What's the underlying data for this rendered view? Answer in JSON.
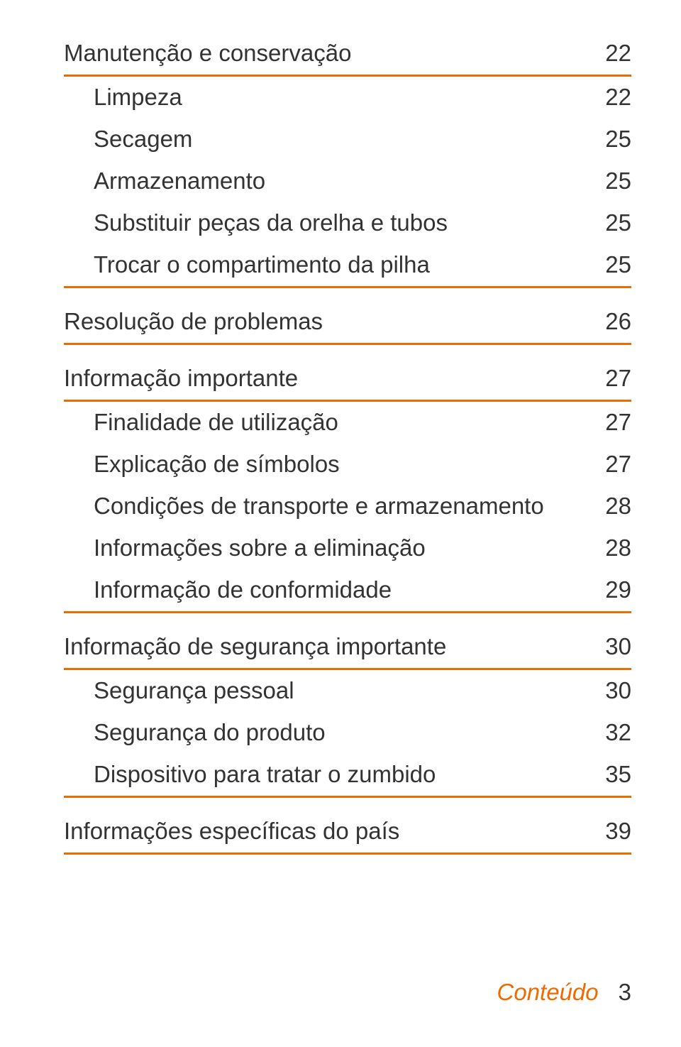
{
  "colors": {
    "rule": "#ed6b00",
    "text": "#333333",
    "footer_label": "#ed6b00",
    "background": "#ffffff"
  },
  "typography": {
    "body_fontsize_pt": 25,
    "footer_fontsize_pt": 25,
    "section_weight": 400,
    "sub_weight": 300
  },
  "sections": [
    {
      "title": "Manutenção e conservação",
      "page": "22",
      "items": [
        {
          "label": "Limpeza",
          "page": "22"
        },
        {
          "label": "Secagem",
          "page": "25"
        },
        {
          "label": "Armazenamento",
          "page": "25"
        },
        {
          "label": "Substituir peças da orelha e tubos",
          "page": "25"
        },
        {
          "label": "Trocar o compartimento da pilha",
          "page": "25"
        }
      ]
    },
    {
      "title": "Resolução de problemas",
      "page": "26",
      "items": []
    },
    {
      "title": "Informação importante",
      "page": "27",
      "items": [
        {
          "label": "Finalidade de utilização",
          "page": "27"
        },
        {
          "label": "Explicação de símbolos",
          "page": "27"
        },
        {
          "label": "Condições de transporte e armazenamento",
          "page": "28"
        },
        {
          "label": "Informações sobre a eliminação",
          "page": "28"
        },
        {
          "label": "Informação de conformidade",
          "page": "29"
        }
      ]
    },
    {
      "title": "Informação de segurança importante",
      "page": "30",
      "items": [
        {
          "label": "Segurança pessoal",
          "page": "30"
        },
        {
          "label": "Segurança do produto",
          "page": "32"
        },
        {
          "label": "Dispositivo para tratar o zumbido",
          "page": "35"
        }
      ]
    },
    {
      "title": "Informações específicas do país",
      "page": "39",
      "items": []
    }
  ],
  "footer": {
    "label": "Conteúdo",
    "page": "3"
  }
}
